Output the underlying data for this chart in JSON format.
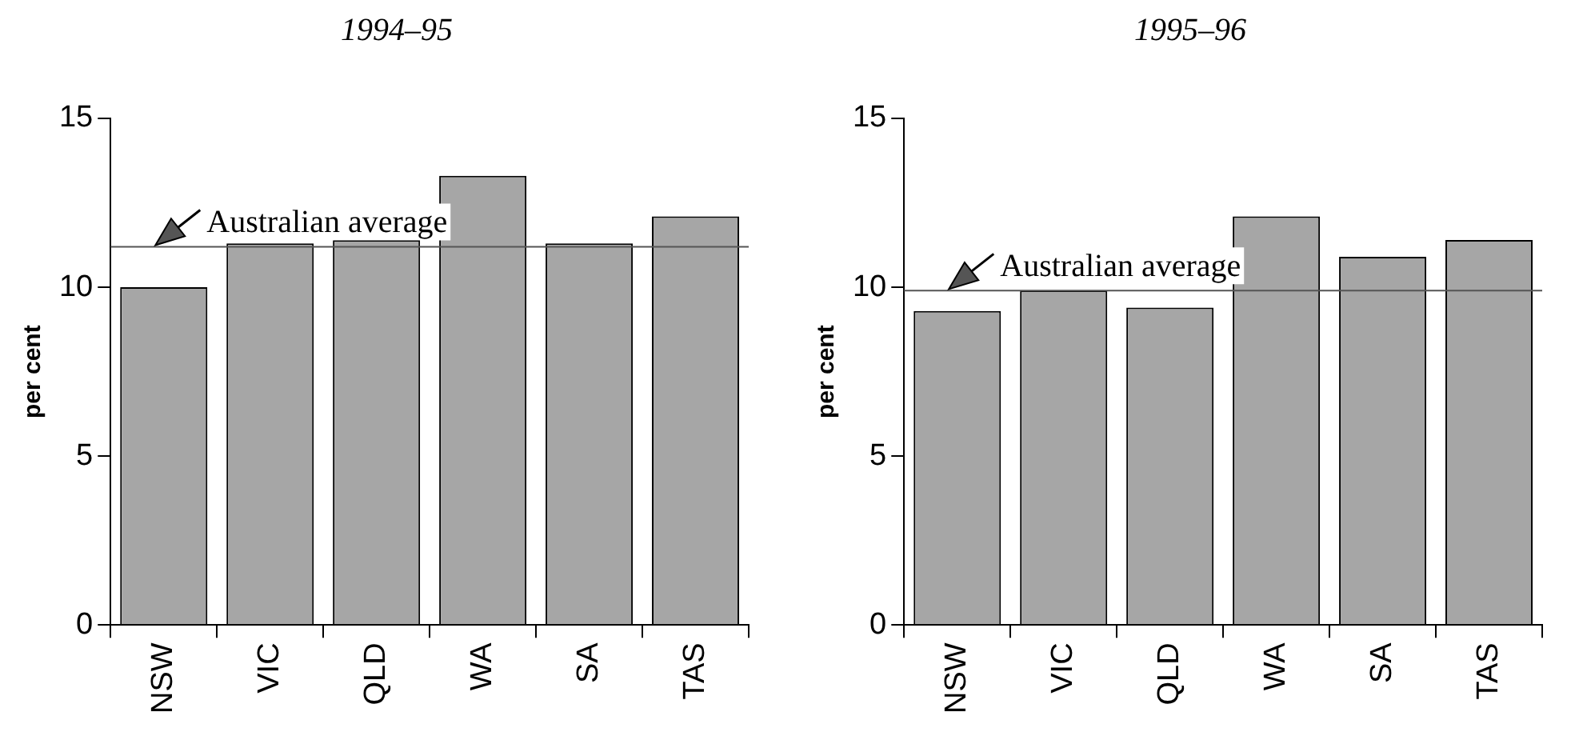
{
  "chart_data": [
    {
      "type": "bar",
      "title": "1994–95",
      "ylabel": "per cent",
      "categories": [
        "NSW",
        "VIC",
        "QLD",
        "WA",
        "SA",
        "TAS"
      ],
      "values": [
        10.0,
        11.3,
        11.4,
        13.3,
        11.3,
        12.1
      ],
      "color": "#a6a6a6",
      "ylim": [
        0,
        15
      ],
      "yticks": [
        0,
        5,
        10,
        15
      ],
      "ref_lines": [
        {
          "axis": "y",
          "value": 11.2,
          "label": "Australian average",
          "color": "#555555"
        }
      ]
    },
    {
      "type": "bar",
      "title": "1995–96",
      "ylabel": "per cent",
      "categories": [
        "NSW",
        "VIC",
        "QLD",
        "WA",
        "SA",
        "TAS"
      ],
      "values": [
        9.3,
        9.9,
        9.4,
        12.1,
        10.9,
        11.4
      ],
      "color": "#a6a6a6",
      "ylim": [
        0,
        15
      ],
      "yticks": [
        0,
        5,
        10,
        15
      ],
      "ref_lines": [
        {
          "axis": "y",
          "value": 9.9,
          "label": "Australian average",
          "color": "#555555"
        }
      ]
    }
  ]
}
